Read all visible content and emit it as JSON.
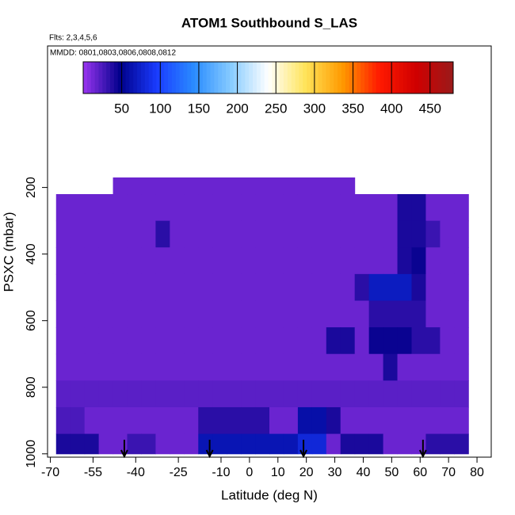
{
  "chart_data": {
    "type": "curtain",
    "title": "ATOM1 Southbound S_LAS",
    "subtitle": "Flts: 2,3,4,5,6",
    "annotation": "MMDD: 0801,0803,0806,0808,0812",
    "x_label": "Latitude (deg N)",
    "y_label": "PSXC (mbar)",
    "xlim": [
      -71,
      85
    ],
    "xticks": [
      -70,
      -55,
      -40,
      -25,
      -10,
      0,
      10,
      20,
      30,
      40,
      50,
      60,
      70,
      80
    ],
    "ylim": [
      -225,
      1010
    ],
    "yticks": [
      200,
      400,
      600,
      800,
      1000
    ],
    "clim": [
      0,
      480
    ],
    "cticks": [
      50,
      100,
      150,
      200,
      250,
      300,
      350,
      400,
      450
    ],
    "colors": [
      "#9a35f0",
      "#00008b",
      "#1a3cff",
      "#2a8cff",
      "#88ccff",
      "#ffffff",
      "#ffe45a",
      "#ff9a00",
      "#ff1a00",
      "#d00000",
      "#9a1a1a"
    ],
    "lat_edges": [
      -68,
      -63,
      -58,
      -53,
      -48,
      -43,
      -38,
      -33,
      -28,
      -23,
      -18,
      -13,
      -8,
      -3,
      2,
      7,
      12,
      17,
      22,
      27,
      32,
      37,
      42,
      47,
      52,
      57,
      62,
      67,
      72,
      77
    ],
    "p_edges": [
      170,
      220,
      300,
      380,
      460,
      540,
      620,
      700,
      780,
      860,
      940,
      1000
    ],
    "values": [
      [
        null,
        null,
        null,
        null,
        15,
        15,
        15,
        15,
        15,
        15,
        15,
        15,
        15,
        15,
        15,
        15,
        15,
        15,
        15,
        15,
        15,
        null,
        null,
        null,
        null,
        null,
        null,
        null,
        null
      ],
      [
        15,
        15,
        15,
        15,
        15,
        15,
        15,
        15,
        15,
        15,
        15,
        15,
        15,
        15,
        15,
        15,
        15,
        15,
        15,
        15,
        15,
        15,
        15,
        15,
        40,
        40,
        15,
        15,
        15
      ],
      [
        15,
        15,
        15,
        15,
        15,
        15,
        15,
        35,
        15,
        15,
        15,
        15,
        15,
        15,
        15,
        15,
        15,
        15,
        15,
        15,
        15,
        15,
        15,
        15,
        40,
        40,
        30,
        15,
        15
      ],
      [
        15,
        15,
        15,
        15,
        15,
        15,
        15,
        15,
        15,
        15,
        15,
        15,
        15,
        15,
        15,
        15,
        15,
        15,
        15,
        15,
        15,
        15,
        15,
        15,
        40,
        45,
        15,
        15,
        15
      ],
      [
        15,
        15,
        15,
        15,
        15,
        15,
        15,
        15,
        15,
        15,
        15,
        15,
        15,
        15,
        15,
        15,
        15,
        15,
        15,
        15,
        15,
        35,
        70,
        70,
        70,
        40,
        15,
        15,
        15
      ],
      [
        15,
        15,
        15,
        15,
        15,
        15,
        15,
        15,
        15,
        15,
        15,
        15,
        15,
        15,
        15,
        15,
        15,
        15,
        15,
        15,
        15,
        15,
        35,
        35,
        35,
        35,
        15,
        15,
        15
      ],
      [
        15,
        15,
        15,
        15,
        15,
        15,
        15,
        15,
        15,
        15,
        15,
        15,
        15,
        15,
        15,
        15,
        15,
        15,
        15,
        40,
        40,
        15,
        45,
        45,
        45,
        35,
        35,
        15,
        15
      ],
      [
        15,
        15,
        15,
        15,
        15,
        15,
        15,
        15,
        15,
        15,
        15,
        15,
        15,
        15,
        15,
        15,
        15,
        15,
        15,
        15,
        15,
        15,
        15,
        40,
        15,
        15,
        15,
        15,
        15
      ],
      [
        20,
        20,
        20,
        20,
        20,
        20,
        20,
        20,
        20,
        20,
        20,
        20,
        20,
        20,
        20,
        20,
        20,
        20,
        20,
        20,
        20,
        20,
        20,
        20,
        20,
        20,
        20,
        20,
        20
      ],
      [
        25,
        25,
        15,
        15,
        15,
        15,
        15,
        15,
        15,
        15,
        35,
        35,
        35,
        35,
        35,
        15,
        15,
        60,
        60,
        40,
        15,
        15,
        15,
        15,
        15,
        15,
        15,
        15,
        15
      ],
      [
        40,
        40,
        40,
        15,
        15,
        30,
        30,
        15,
        15,
        15,
        65,
        65,
        65,
        65,
        65,
        65,
        65,
        80,
        80,
        15,
        40,
        40,
        40,
        15,
        15,
        15,
        35,
        35,
        35
      ]
    ],
    "arrows": [
      -44,
      -14,
      19,
      61
    ]
  }
}
